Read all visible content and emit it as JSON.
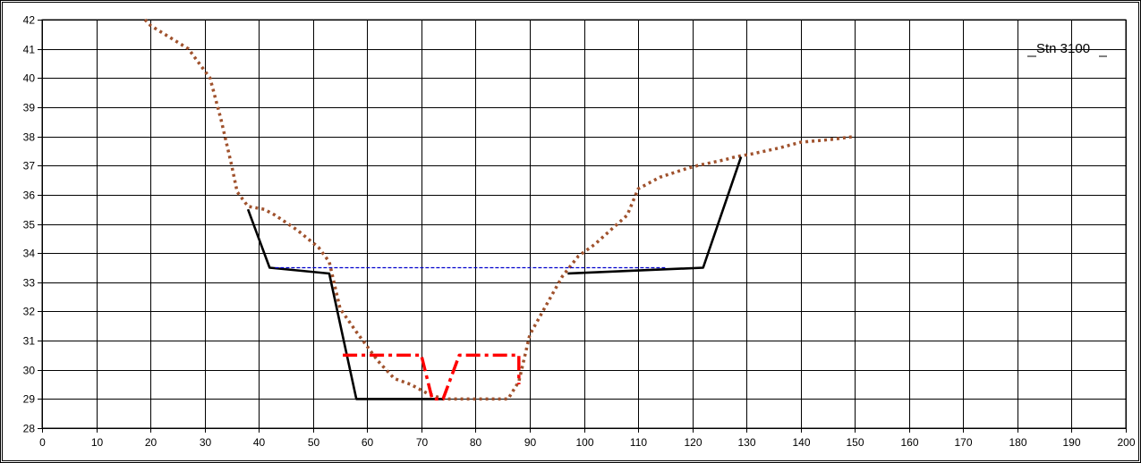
{
  "chart_data": {
    "type": "line",
    "title": "",
    "xlabel": "",
    "ylabel": "",
    "xlim": [
      0,
      200
    ],
    "ylim": [
      28,
      42
    ],
    "x_ticks": [
      0,
      10,
      20,
      30,
      40,
      50,
      60,
      70,
      80,
      90,
      100,
      110,
      120,
      130,
      140,
      150,
      160,
      170,
      180,
      190,
      200
    ],
    "y_ticks": [
      28,
      29,
      30,
      31,
      32,
      33,
      34,
      35,
      36,
      37,
      38,
      39,
      40,
      41,
      42
    ],
    "grid": true,
    "legend": "none",
    "annotations": [
      {
        "text": "Stn 3100",
        "position": "top-right"
      }
    ],
    "series": [
      {
        "style": "dotted",
        "color": "#a0522d",
        "points": [
          [
            19,
            42
          ],
          [
            20,
            41.8
          ],
          [
            27,
            41
          ],
          [
            31,
            40
          ],
          [
            33,
            38.6
          ],
          [
            35,
            37
          ],
          [
            36,
            36.1
          ],
          [
            38,
            35.6
          ],
          [
            41,
            35.5
          ],
          [
            43,
            35.3
          ],
          [
            47,
            34.8
          ],
          [
            51,
            34.2
          ],
          [
            53,
            33.7
          ],
          [
            55,
            32.1
          ],
          [
            58,
            31.3
          ],
          [
            62,
            30.3
          ],
          [
            65,
            29.7
          ],
          [
            68,
            29.5
          ],
          [
            71,
            29.2
          ],
          [
            74,
            29
          ],
          [
            80,
            29
          ],
          [
            84,
            29
          ],
          [
            86,
            29
          ],
          [
            88,
            29.6
          ],
          [
            90,
            31.2
          ],
          [
            93,
            32.2
          ],
          [
            96,
            33.2
          ],
          [
            99,
            33.9
          ],
          [
            102,
            34.3
          ],
          [
            105,
            34.8
          ],
          [
            108,
            35.3
          ],
          [
            110,
            36.2
          ],
          [
            114,
            36.6
          ],
          [
            119,
            36.9
          ],
          [
            121,
            37
          ],
          [
            126,
            37.2
          ],
          [
            128,
            37.3
          ],
          [
            131,
            37.4
          ],
          [
            136,
            37.6
          ],
          [
            140,
            37.8
          ],
          [
            146,
            37.9
          ],
          [
            150,
            38
          ]
        ]
      },
      {
        "style": "solid",
        "color": "#000000",
        "points": [
          [
            38,
            35.5
          ],
          [
            42,
            33.5
          ],
          [
            53,
            33.3
          ],
          [
            58,
            29
          ],
          [
            74,
            29
          ]
        ]
      },
      {
        "style": "solid",
        "color": "#000000",
        "points": [
          [
            97,
            33.3
          ],
          [
            122,
            33.5
          ],
          [
            129,
            37.3
          ]
        ]
      },
      {
        "style": "dashed",
        "color": "#0000cc",
        "points": [
          [
            43,
            33.5
          ],
          [
            115,
            33.5
          ]
        ]
      },
      {
        "style": "dashdot",
        "color": "#ff0000",
        "points": [
          [
            55.5,
            30.5
          ],
          [
            70,
            30.5
          ],
          [
            72,
            29
          ],
          [
            74,
            29
          ],
          [
            77,
            30.5
          ],
          [
            88,
            30.5
          ],
          [
            88,
            29.5
          ]
        ]
      }
    ]
  }
}
